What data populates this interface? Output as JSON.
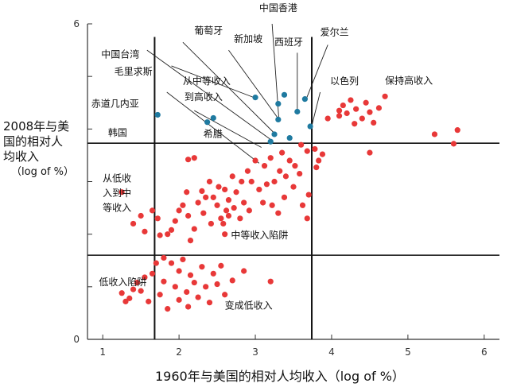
{
  "chart_data": {
    "type": "scatter",
    "xlabel": "1960年与美国的相对人均收入（log of %）",
    "ylabel_lines": [
      "2008年与美",
      "国的相对人",
      "均收入",
      "（log of %）"
    ],
    "xlim": [
      0.8,
      6.2
    ],
    "ylim": [
      0,
      6
    ],
    "x_ticks": [
      1,
      2,
      3,
      4,
      5,
      6
    ],
    "y_ticks": [
      0,
      1,
      2,
      3,
      4,
      5,
      6
    ],
    "y_tick_labels": [
      "0",
      "",
      "",
      "",
      "",
      "",
      "6"
    ],
    "vertical_lines": [
      1.68,
      3.74
    ],
    "horizontal_lines": [
      1.6,
      3.73
    ],
    "grid": false,
    "colors": {
      "red": "#e83838",
      "blue": "#1f7aa0",
      "axis": "#333333"
    },
    "series": [
      {
        "color": "blue",
        "points": [
          [
            1.72,
            4.27
          ],
          [
            2.37,
            4.13
          ],
          [
            2.45,
            4.21
          ],
          [
            3.0,
            4.6
          ],
          [
            3.2,
            3.76
          ],
          [
            3.25,
            3.9
          ],
          [
            3.3,
            4.18
          ],
          [
            3.3,
            4.48
          ],
          [
            3.38,
            4.65
          ],
          [
            3.45,
            3.83
          ],
          [
            3.55,
            4.33
          ],
          [
            3.65,
            4.57
          ],
          [
            3.72,
            4.05
          ]
        ]
      },
      {
        "color": "red",
        "points": [
          [
            3.6,
            3.7
          ],
          [
            3.68,
            3.58
          ],
          [
            3.78,
            3.62
          ],
          [
            3.88,
            3.52
          ],
          [
            3.83,
            3.4
          ],
          [
            3.8,
            3.27
          ],
          [
            3.95,
            4.2
          ],
          [
            4.1,
            4.35
          ],
          [
            4.15,
            4.45
          ],
          [
            4.2,
            4.3
          ],
          [
            4.25,
            4.55
          ],
          [
            4.32,
            4.38
          ],
          [
            4.4,
            4.2
          ],
          [
            4.45,
            4.5
          ],
          [
            4.5,
            4.32
          ],
          [
            4.55,
            4.12
          ],
          [
            4.62,
            4.4
          ],
          [
            4.7,
            4.62
          ],
          [
            4.5,
            3.55
          ],
          [
            4.1,
            4.25
          ],
          [
            5.35,
            3.9
          ],
          [
            5.6,
            3.72
          ],
          [
            5.65,
            3.98
          ],
          [
            4.3,
            4.1
          ],
          [
            1.25,
            2.8
          ],
          [
            1.4,
            2.2
          ],
          [
            1.5,
            2.35
          ],
          [
            1.55,
            2.05
          ],
          [
            1.65,
            2.45
          ],
          [
            1.72,
            2.3
          ],
          [
            1.75,
            1.98
          ],
          [
            1.85,
            2.0
          ],
          [
            1.9,
            2.08
          ],
          [
            1.95,
            2.25
          ],
          [
            2.0,
            2.45
          ],
          [
            2.05,
            2.55
          ],
          [
            2.1,
            2.8
          ],
          [
            2.12,
            2.35
          ],
          [
            2.2,
            2.1
          ],
          [
            2.25,
            2.6
          ],
          [
            2.3,
            2.82
          ],
          [
            2.32,
            2.4
          ],
          [
            2.35,
            2.7
          ],
          [
            2.4,
            3.0
          ],
          [
            2.45,
            2.7
          ],
          [
            2.5,
            2.55
          ],
          [
            2.52,
            2.9
          ],
          [
            2.55,
            2.3
          ],
          [
            2.58,
            2.2
          ],
          [
            2.6,
            2.85
          ],
          [
            2.62,
            2.45
          ],
          [
            2.65,
            2.65
          ],
          [
            2.7,
            3.1
          ],
          [
            2.72,
            2.5
          ],
          [
            2.75,
            2.8
          ],
          [
            2.8,
            2.3
          ],
          [
            2.82,
            3.0
          ],
          [
            2.85,
            2.6
          ],
          [
            2.9,
            3.2
          ],
          [
            2.92,
            2.45
          ],
          [
            2.95,
            3.0
          ],
          [
            3.0,
            3.4
          ],
          [
            3.05,
            2.85
          ],
          [
            3.1,
            2.6
          ],
          [
            3.12,
            3.3
          ],
          [
            3.15,
            2.95
          ],
          [
            3.2,
            3.45
          ],
          [
            3.22,
            2.55
          ],
          [
            3.25,
            3.0
          ],
          [
            3.3,
            2.4
          ],
          [
            3.32,
            3.2
          ],
          [
            3.35,
            3.55
          ],
          [
            3.38,
            2.7
          ],
          [
            3.4,
            3.1
          ],
          [
            3.45,
            3.4
          ],
          [
            3.5,
            2.9
          ],
          [
            3.52,
            3.3
          ],
          [
            3.58,
            3.15
          ],
          [
            3.62,
            2.55
          ],
          [
            3.68,
            2.3
          ],
          [
            3.7,
            2.75
          ],
          [
            2.12,
            3.42
          ],
          [
            2.2,
            3.45
          ],
          [
            2.42,
            2.2
          ],
          [
            2.6,
            2.0
          ],
          [
            2.65,
            2.35
          ],
          [
            2.15,
            1.88
          ],
          [
            1.25,
            0.88
          ],
          [
            1.3,
            0.72
          ],
          [
            1.35,
            0.78
          ],
          [
            1.4,
            0.95
          ],
          [
            1.45,
            1.08
          ],
          [
            1.5,
            0.92
          ],
          [
            1.55,
            1.18
          ],
          [
            1.6,
            0.72
          ],
          [
            1.65,
            1.25
          ],
          [
            1.7,
            1.45
          ],
          [
            1.75,
            0.85
          ],
          [
            1.8,
            1.1
          ],
          [
            1.85,
            0.58
          ],
          [
            1.9,
            1.45
          ],
          [
            1.95,
            1.0
          ],
          [
            2.0,
            0.75
          ],
          [
            2.0,
            1.3
          ],
          [
            2.05,
            1.52
          ],
          [
            2.1,
            0.9
          ],
          [
            2.12,
            0.62
          ],
          [
            2.15,
            1.22
          ],
          [
            2.2,
            1.08
          ],
          [
            2.25,
            0.8
          ],
          [
            2.3,
            1.38
          ],
          [
            2.35,
            1.0
          ],
          [
            2.4,
            0.7
          ],
          [
            2.45,
            1.25
          ],
          [
            2.5,
            1.05
          ],
          [
            2.55,
            1.4
          ],
          [
            2.6,
            0.85
          ],
          [
            2.7,
            1.12
          ],
          [
            2.85,
            1.3
          ],
          [
            3.2,
            1.1
          ],
          [
            1.8,
            1.55
          ]
        ]
      }
    ],
    "annotations": [
      {
        "text": "中国香港",
        "x": 3.05,
        "y": 6.24
      },
      {
        "text": "葡萄牙",
        "x": 2.2,
        "y": 5.81
      },
      {
        "text": "新加坡",
        "x": 2.72,
        "y": 5.65
      },
      {
        "text": "西班牙",
        "x": 3.25,
        "y": 5.59
      },
      {
        "text": "爱尔兰",
        "x": 3.85,
        "y": 5.78
      },
      {
        "text": "中国台湾",
        "x": 0.98,
        "y": 5.36
      },
      {
        "text": "毛里求斯",
        "x": 1.15,
        "y": 5.03
      },
      {
        "text": "从中等收入",
        "x": 2.05,
        "y": 4.85
      },
      {
        "text": "到高收入",
        "x": 2.07,
        "y": 4.55
      },
      {
        "text": "以色列",
        "x": 3.98,
        "y": 4.85
      },
      {
        "text": "保持高收入",
        "x": 4.7,
        "y": 4.86
      },
      {
        "text": "赤道几内亚",
        "x": 0.85,
        "y": 4.42
      },
      {
        "text": "韩国",
        "x": 1.07,
        "y": 3.87
      },
      {
        "text": "希腊",
        "x": 2.32,
        "y": 3.85
      },
      {
        "text": "从低收",
        "x": 1.0,
        "y": 3.0
      },
      {
        "text": "入到中",
        "x": 1.0,
        "y": 2.72
      },
      {
        "text": "等收入",
        "x": 1.0,
        "y": 2.44
      },
      {
        "text": "中等收入陷阱",
        "x": 2.68,
        "y": 1.92
      },
      {
        "text": "低收入陷阱",
        "x": 0.95,
        "y": 1.03
      },
      {
        "text": "变成低收入",
        "x": 2.6,
        "y": 0.58
      }
    ],
    "leader_lines": [
      [
        3.22,
        6.0,
        3.31,
        4.16
      ],
      [
        2.05,
        5.65,
        3.25,
        3.92
      ],
      [
        2.65,
        5.5,
        3.3,
        4.2
      ],
      [
        3.55,
        5.45,
        3.55,
        4.33
      ],
      [
        3.95,
        5.6,
        3.67,
        4.58
      ],
      [
        1.58,
        5.5,
        3.22,
        3.78
      ],
      [
        1.9,
        5.2,
        2.98,
        4.6
      ],
      [
        2.2,
        4.35,
        3.08,
        3.65
      ],
      [
        3.85,
        4.7,
        3.74,
        4.06
      ],
      [
        1.84,
        4.7,
        3.05,
        3.35
      ]
    ]
  }
}
